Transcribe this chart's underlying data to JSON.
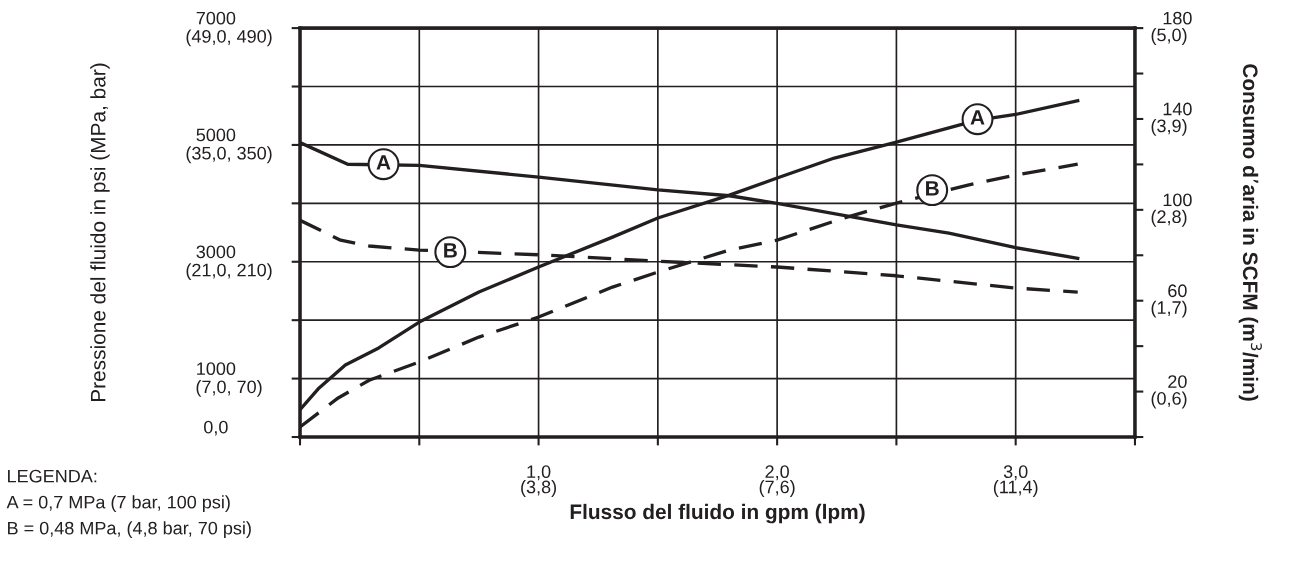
{
  "chart_data": {
    "type": "line",
    "xlabel": "Flusso del fluido in gpm (lpm)",
    "ylabel": "Pressione del fluido in psi (MPa, bar)",
    "y2label": "Consumo d’aria in SCFM (m$^{3}$/min)",
    "xlim": [
      0,
      3.5
    ],
    "xticks": [
      {
        "value": 0,
        "label": null
      },
      {
        "value": 0.5,
        "label": null
      },
      {
        "value": 1.0,
        "label": "1,0"
      },
      {
        "value": 1.5,
        "label": null
      },
      {
        "value": 2.0,
        "label": "2,0"
      },
      {
        "value": 2.5,
        "label": null
      },
      {
        "value": 3.0,
        "label": "3,0"
      },
      {
        "value": 3.5,
        "label": null
      }
    ],
    "ylim": [
      0,
      7000
    ],
    "yticks": [
      {
        "value": 0,
        "label": "0,0"
      },
      {
        "value": 1000,
        "label": "1000"
      },
      {
        "value": 2000,
        "label": null
      },
      {
        "value": 3000,
        "label": "3000"
      },
      {
        "value": 4000,
        "label": null
      },
      {
        "value": 5000,
        "label": "5000"
      },
      {
        "value": 6000,
        "label": null
      },
      {
        "value": 7000,
        "label": "7000"
      }
    ],
    "x2lim": [
      0,
      13.3
    ],
    "x2ticks": [
      {
        "value": 3.8,
        "label": "(3,8)"
      },
      {
        "value": 7.6,
        "label": "(7,6)"
      },
      {
        "value": 11.4,
        "label": "(11,4)"
      }
    ],
    "y3lim": [
      0.05,
      5.0
    ],
    "y3ticks": [
      {
        "value": 0.6,
        "label": "(0,6)"
      },
      {
        "value": 1.7,
        "label": "(1,7)"
      },
      {
        "value": 2.8,
        "label": "(2,8)"
      },
      {
        "value": 3.9,
        "label": "(3,9)"
      },
      {
        "value": 5.0,
        "label": "(5,0)"
      }
    ],
    "y2lim": [
      0,
      180
    ],
    "y2ticks": [
      {
        "value": 0,
        "label": null
      },
      {
        "value": 20,
        "label": "20"
      },
      {
        "value": 40,
        "label": null
      },
      {
        "value": 60,
        "label": "60"
      },
      {
        "value": 80,
        "label": null
      },
      {
        "value": 100,
        "label": "100"
      },
      {
        "value": 120,
        "label": null
      },
      {
        "value": 140,
        "label": "140"
      },
      {
        "value": 160,
        "label": null
      },
      {
        "value": 180,
        "label": "180"
      }
    ],
    "grid": true,
    "marker": "none",
    "series": [
      {
        "color": "#231f20",
        "line_style": "solid",
        "x": [
          0,
          0.2,
          0.5,
          1.0,
          1.5,
          1.8,
          2.0,
          2.5,
          2.72,
          3.0,
          3.26
        ],
        "values": [
          5040,
          4670,
          4650,
          4450,
          4230,
          4130,
          4000,
          3630,
          3490,
          3240,
          3060
        ]
      },
      {
        "color": "#231f20",
        "line_style": "dashed",
        "x": [
          0,
          0.17,
          0.29,
          0.5,
          1.0,
          1.5,
          2.0,
          2.5,
          3.0,
          3.26
        ],
        "values": [
          3710,
          3370,
          3270,
          3200,
          3120,
          3010,
          2910,
          2760,
          2550,
          2480
        ]
      },
      {
        "color": "#231f20",
        "line_style": "solid",
        "axis": "y2",
        "x": [
          0,
          0.08,
          0.19,
          0.33,
          0.5,
          0.75,
          1.0,
          1.31,
          1.5,
          1.8,
          2.0,
          2.24,
          2.5,
          2.84,
          3.0,
          3.26
        ],
        "values": [
          12,
          21.6,
          31.7,
          39.2,
          50.6,
          63.8,
          74.8,
          88,
          96.4,
          106.5,
          114,
          122.8,
          129.8,
          139.5,
          142,
          148
        ]
      },
      {
        "color": "#231f20",
        "line_style": "dashed",
        "axis": "y2",
        "x": [
          0,
          0.16,
          0.29,
          0.5,
          0.75,
          1.0,
          1.31,
          1.5,
          1.8,
          2.0,
          2.28,
          2.5,
          2.8,
          3.0,
          3.26
        ],
        "values": [
          4.4,
          17.2,
          25,
          33,
          44,
          52.8,
          66,
          72.6,
          82.3,
          86.7,
          96.4,
          103,
          110.9,
          115.3,
          120.1
        ]
      }
    ],
    "annotations": [
      {
        "text": "A",
        "x": 0.35,
        "y": 4670
      },
      {
        "text": "B",
        "x": 0.63,
        "y": 3165
      },
      {
        "text": "A",
        "x": 2.84,
        "y": 5440
      },
      {
        "text": "B",
        "x": 2.65,
        "y": 4226
      },
      "(49,0, 490)",
      "(35,0, 350)",
      "(21,0, 210)",
      "(7,0, 70)",
      "LEGENDA:\nA = 0,7 MPa (7 bar, 100 psi)\nB = 0,48 MPa, (4,8 bar, 70 psi)"
    ]
  }
}
